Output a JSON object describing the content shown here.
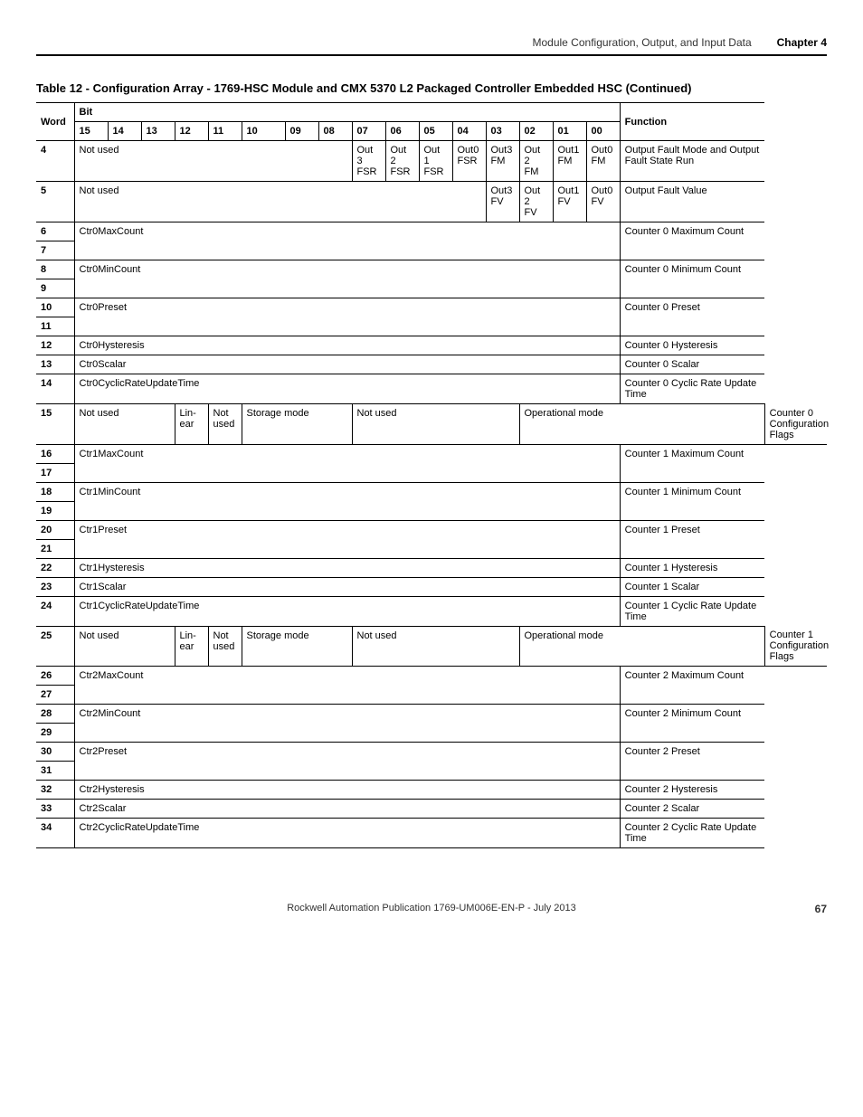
{
  "header": {
    "section": "Module Configuration, Output, and Input Data",
    "chapter": "Chapter 4"
  },
  "table_title": "Table 12 - Configuration Array - 1769-HSC Module and CMX 5370 L2 Packaged Controller Embedded HSC (Continued)",
  "hdr": {
    "word": "Word",
    "bit": "Bit",
    "function": "Function",
    "b15": "15",
    "b14": "14",
    "b13": "13",
    "b12": "12",
    "b11": "11",
    "b10": "10",
    "b09": "09",
    "b08": "08",
    "b07": "07",
    "b06": "06",
    "b05": "05",
    "b04": "04",
    "b03": "03",
    "b02": "02",
    "b01": "01",
    "b00": "00"
  },
  "word": {
    "w4": "4",
    "w5": "5",
    "w6": "6",
    "w7": "7",
    "w8": "8",
    "w9": "9",
    "w10": "10",
    "w11": "11",
    "w12": "12",
    "w13": "13",
    "w14": "14",
    "w15": "15",
    "w16": "16",
    "w17": "17",
    "w18": "18",
    "w19": "19",
    "w20": "20",
    "w21": "21",
    "w22": "22",
    "w23": "23",
    "w24": "24",
    "w25": "25",
    "w26": "26",
    "w27": "27",
    "w28": "28",
    "w29": "29",
    "w30": "30",
    "w31": "31",
    "w32": "32",
    "w33": "33",
    "w34": "34"
  },
  "row4": {
    "notused": "Not used",
    "c07a": "Out",
    "c07b": "3",
    "c07c": "FSR",
    "c06a": "Out",
    "c06b": "2",
    "c06c": "FSR",
    "c05a": "Out 1",
    "c05b": "FSR",
    "c04a": "Out0",
    "c04b": "FSR",
    "c03a": "Out3",
    "c03b": "FM",
    "c02a": "Out 2",
    "c02b": "FM",
    "c01a": "Out1",
    "c01b": "FM",
    "c00a": "Out0",
    "c00b": "FM",
    "func": "Output Fault Mode and Output Fault State Run"
  },
  "row5": {
    "notused": "Not used",
    "c03a": "Out3",
    "c03b": "FV",
    "c02a": "Out 2",
    "c02b": "FV",
    "c01a": "Out1",
    "c01b": "FV",
    "c00a": "Out0",
    "c00b": "FV",
    "func": "Output Fault Value"
  },
  "row6": {
    "name": "Ctr0MaxCount",
    "func": "Counter 0 Maximum Count"
  },
  "row8": {
    "name": "Ctr0MinCount",
    "func": "Counter 0 Minimum Count"
  },
  "row10": {
    "name": "Ctr0Preset",
    "func": "Counter 0 Preset"
  },
  "row12": {
    "name": "Ctr0Hysteresis",
    "func": "Counter 0 Hysteresis"
  },
  "row13": {
    "name": "Ctr0Scalar",
    "func": "Counter 0 Scalar"
  },
  "row14": {
    "name": "Ctr0CyclicRateUpdateTime",
    "func": "Counter 0 Cyclic Rate Update Time"
  },
  "row15": {
    "notused1": "Not used",
    "linear": "Lin-\near",
    "notused2": "Not used",
    "storage": "Storage mode",
    "notused3": "Not used",
    "opmode": "Operational mode",
    "func": "Counter 0 Configuration Flags"
  },
  "row16": {
    "name": "Ctr1MaxCount",
    "func": "Counter 1 Maximum Count"
  },
  "row18": {
    "name": "Ctr1MinCount",
    "func": "Counter 1 Minimum Count"
  },
  "row20": {
    "name": "Ctr1Preset",
    "func": "Counter 1 Preset"
  },
  "row22": {
    "name": "Ctr1Hysteresis",
    "func": "Counter 1 Hysteresis"
  },
  "row23": {
    "name": "Ctr1Scalar",
    "func": "Counter 1 Scalar"
  },
  "row24": {
    "name": "Ctr1CyclicRateUpdateTime",
    "func": "Counter 1 Cyclic Rate Update Time"
  },
  "row25": {
    "notused1": "Not used",
    "linear": "Lin-\near",
    "notused2": "Not used",
    "storage": "Storage mode",
    "notused3": "Not used",
    "opmode": "Operational mode",
    "func": "Counter 1 Configuration Flags"
  },
  "row26": {
    "name": "Ctr2MaxCount",
    "func": "Counter 2 Maximum Count"
  },
  "row28": {
    "name": "Ctr2MinCount",
    "func": "Counter 2 Minimum Count"
  },
  "row30": {
    "name": "Ctr2Preset",
    "func": "Counter 2 Preset"
  },
  "row32": {
    "name": "Ctr2Hysteresis",
    "func": "Counter 2 Hysteresis"
  },
  "row33": {
    "name": "Ctr2Scalar",
    "func": "Counter 2 Scalar"
  },
  "row34": {
    "name": "Ctr2CyclicRateUpdateTime",
    "func": "Counter 2 Cyclic Rate Update Time"
  },
  "footer": {
    "pub": "Rockwell Automation Publication 1769-UM006E-EN-P - July 2013",
    "page": "67"
  }
}
